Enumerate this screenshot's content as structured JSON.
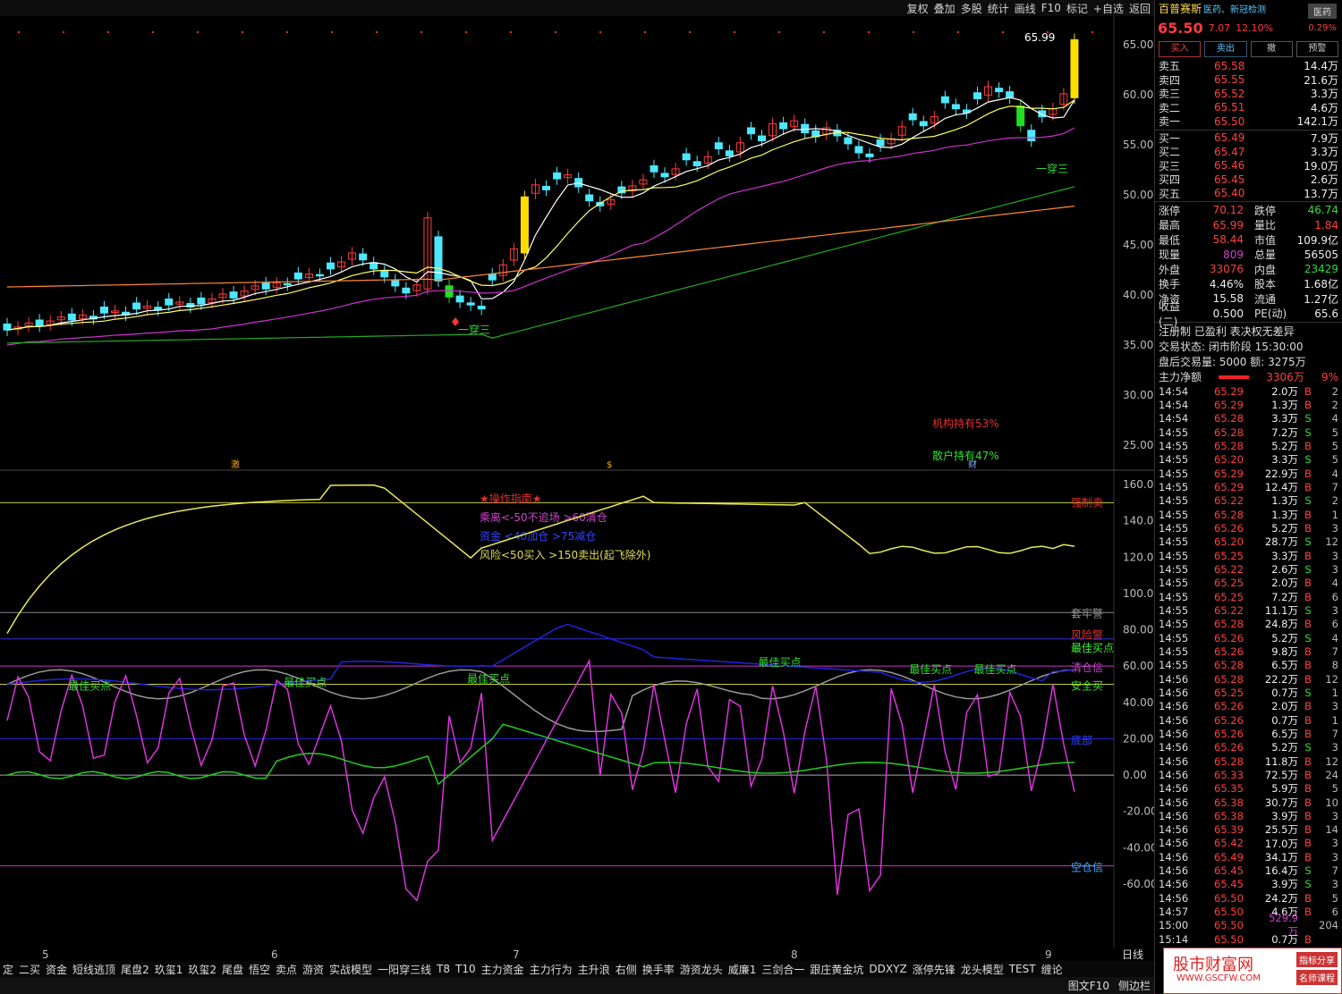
{
  "toolbar": [
    "复权",
    "叠加",
    "多股",
    "统计",
    "画线",
    "F10",
    "标记",
    "+自选",
    "返回"
  ],
  "stock": {
    "name": "百普赛斯",
    "tags": "医药、新冠检测",
    "badge": "医药",
    "price": "65.50",
    "change": "7.07",
    "pct": "12.10%",
    "pct2": "0.29%"
  },
  "trade_buttons": [
    "买入",
    "卖出",
    "撤",
    "预警"
  ],
  "asks": [
    {
      "label": "卖五",
      "price": "65.58",
      "vol": "14.4万"
    },
    {
      "label": "卖四",
      "price": "65.55",
      "vol": "21.6万"
    },
    {
      "label": "卖三",
      "price": "65.52",
      "vol": "3.3万"
    },
    {
      "label": "卖二",
      "price": "65.51",
      "vol": "4.6万"
    },
    {
      "label": "卖一",
      "price": "65.50",
      "vol": "142.1万"
    }
  ],
  "bids": [
    {
      "label": "买一",
      "price": "65.49",
      "vol": "7.9万"
    },
    {
      "label": "买二",
      "price": "65.47",
      "vol": "3.3万"
    },
    {
      "label": "买三",
      "price": "65.46",
      "vol": "19.0万"
    },
    {
      "label": "买四",
      "price": "65.45",
      "vol": "2.6万"
    },
    {
      "label": "买五",
      "price": "65.40",
      "vol": "13.7万"
    }
  ],
  "stats": [
    {
      "l1": "涨停",
      "v1": "70.12",
      "l2": "跌停",
      "v2": "46.74",
      "c1": "#ff4040",
      "c2": "#33dd33"
    },
    {
      "l1": "最高",
      "v1": "65.99",
      "l2": "量比",
      "v2": "1.84",
      "c1": "#ff4040",
      "c2": "#ff4040"
    },
    {
      "l1": "最低",
      "v1": "58.44",
      "l2": "市值",
      "v2": "109.9亿",
      "c1": "#ff4040",
      "c2": "#eeeeee"
    },
    {
      "l1": "现量",
      "v1": "809",
      "l2": "总量",
      "v2": "56505",
      "c1": "#cc44cc",
      "c2": "#eeeeee"
    },
    {
      "l1": "外盘",
      "v1": "33076",
      "l2": "内盘",
      "v2": "23429",
      "c1": "#ff4040",
      "c2": "#33dd33"
    },
    {
      "l1": "换手",
      "v1": "4.46%",
      "l2": "股本",
      "v2": "1.68亿",
      "c1": "#eeeeee",
      "c2": "#eeeeee"
    },
    {
      "l1": "净资",
      "v1": "15.58",
      "l2": "流通",
      "v2": "1.27亿",
      "c1": "#eeeeee",
      "c2": "#eeeeee"
    },
    {
      "l1": "收益(二)",
      "v1": "0.500",
      "l2": "PE(动)",
      "v2": "65.6",
      "c1": "#eeeeee",
      "c2": "#eeeeee"
    }
  ],
  "info": [
    "注册制 已盈利 表决权无差异",
    "交易状态: 闭市阶段 15:30:00",
    "盘后交易量: 5000 额: 3275万"
  ],
  "main_flow": {
    "label": "主力净额",
    "value": "3306万",
    "pct": "9%"
  },
  "ticks": [
    [
      "14:54",
      "65.29",
      "2.0万",
      "B",
      "2"
    ],
    [
      "14:54",
      "65.29",
      "1.3万",
      "B",
      "2"
    ],
    [
      "14:54",
      "65.28",
      "3.3万",
      "S",
      "4"
    ],
    [
      "14:55",
      "65.28",
      "7.2万",
      "S",
      "5"
    ],
    [
      "14:55",
      "65.28",
      "5.2万",
      "B",
      "5"
    ],
    [
      "14:55",
      "65.20",
      "3.3万",
      "S",
      "5"
    ],
    [
      "14:55",
      "65.29",
      "22.9万",
      "B",
      "4"
    ],
    [
      "14:55",
      "65.29",
      "12.4万",
      "B",
      "7"
    ],
    [
      "14:55",
      "65.22",
      "1.3万",
      "S",
      "2"
    ],
    [
      "14:55",
      "65.28",
      "1.3万",
      "B",
      "1"
    ],
    [
      "14:55",
      "65.26",
      "5.2万",
      "B",
      "3"
    ],
    [
      "14:55",
      "65.20",
      "28.7万",
      "S",
      "12"
    ],
    [
      "14:55",
      "65.25",
      "3.3万",
      "B",
      "3"
    ],
    [
      "14:55",
      "65.22",
      "2.6万",
      "S",
      "3"
    ],
    [
      "14:55",
      "65.25",
      "2.0万",
      "B",
      "4"
    ],
    [
      "14:55",
      "65.25",
      "7.2万",
      "B",
      "6"
    ],
    [
      "14:55",
      "65.22",
      "11.1万",
      "S",
      "3"
    ],
    [
      "14:55",
      "65.28",
      "24.8万",
      "B",
      "6"
    ],
    [
      "14:55",
      "65.26",
      "5.2万",
      "S",
      "4"
    ],
    [
      "14:55",
      "65.26",
      "9.8万",
      "B",
      "7"
    ],
    [
      "14:55",
      "65.28",
      "6.5万",
      "B",
      "8"
    ],
    [
      "14:56",
      "65.28",
      "22.2万",
      "B",
      "12"
    ],
    [
      "14:56",
      "65.25",
      "0.7万",
      "S",
      "1"
    ],
    [
      "14:56",
      "65.26",
      "2.0万",
      "B",
      "3"
    ],
    [
      "14:56",
      "65.26",
      "0.7万",
      "B",
      "1"
    ],
    [
      "14:56",
      "65.26",
      "6.5万",
      "B",
      "7"
    ],
    [
      "14:56",
      "65.26",
      "5.2万",
      "S",
      "3"
    ],
    [
      "14:56",
      "65.28",
      "11.8万",
      "B",
      "12"
    ],
    [
      "14:56",
      "65.33",
      "72.5万",
      "B",
      "24"
    ],
    [
      "14:56",
      "65.35",
      "5.9万",
      "B",
      "5"
    ],
    [
      "14:56",
      "65.38",
      "30.7万",
      "B",
      "10"
    ],
    [
      "14:56",
      "65.38",
      "3.9万",
      "B",
      "3"
    ],
    [
      "14:56",
      "65.39",
      "25.5万",
      "B",
      "14"
    ],
    [
      "14:56",
      "65.42",
      "17.0万",
      "B",
      "3"
    ],
    [
      "14:56",
      "65.49",
      "34.1万",
      "B",
      "3"
    ],
    [
      "14:56",
      "65.45",
      "16.4万",
      "S",
      "7"
    ],
    [
      "14:56",
      "65.45",
      "3.9万",
      "S",
      "3"
    ],
    [
      "14:56",
      "65.50",
      "24.2万",
      "B",
      "5"
    ],
    [
      "14:57",
      "65.50",
      "4.6万",
      "B",
      "6"
    ],
    [
      "15:00",
      "65.50",
      "529.9万",
      "",
      "204"
    ],
    [
      "15:14",
      "65.50",
      "0.7万",
      "B",
      ""
    ]
  ],
  "price_axis": [
    "65.00",
    "60.00",
    "55.00",
    "50.00",
    "45.00",
    "40.00",
    "35.00",
    "30.00",
    "25.00"
  ],
  "ind_axis": [
    "160.0",
    "140.0",
    "120.0",
    "100.0",
    "80.00",
    "60.00",
    "40.00",
    "20.00",
    "0.00",
    "-20.00",
    "-40.00",
    "-60.00"
  ],
  "x_labels": [
    "5",
    "6",
    "7",
    "8",
    "9"
  ],
  "period": "日线",
  "annotations": {
    "high": "65.99",
    "pattern1": "一穿三",
    "pattern2": "一穿三",
    "inst": "机构持有53%",
    "retail": "散户持有47%",
    "guide_title": "★操作指南★",
    "guide1": "乘离<-50不追场 >60清仓",
    "guide2": "资金 <40加仓 >75减仓",
    "guide3": "风险<50买入 >150卖出(起飞除外)",
    "r1": "强制卖",
    "r2": "套牢警",
    "r3": "风险警",
    "r4": "最佳买",
    "r5": "清仓信",
    "r6": "安全买",
    "r7": "底部",
    "r8": "空仓信",
    "buy": "最佳买点",
    "mark1": "激",
    "mark2": "$",
    "mark3": "财"
  },
  "bottom_tabs": [
    "定",
    "二买",
    "资金",
    "短线逃顶",
    "尾盘2",
    "玖玺1",
    "玖玺2",
    "尾盘",
    "悟空",
    "卖点",
    "游资",
    "实战模型",
    "一阳穿三线",
    "T8",
    "T10",
    "主力资金",
    "主力行为",
    "主升浪",
    "右侧",
    "换手率",
    "游资龙头",
    "威廉1",
    "三剑合一",
    "跟庄黄金坑",
    "DDXYZ",
    "涨停先锋",
    "龙头模型",
    "TEST",
    "缠论"
  ],
  "status": [
    "图文F10",
    "侧边栏"
  ],
  "watermark": {
    "title": "股市财富网",
    "url": "WWW.GSCFW.COM",
    "t1": "指标分享",
    "t2": "名师课程"
  },
  "colors": {
    "up": "#ff3b3b",
    "down": "#4de8ff",
    "ma5": "#ffffff",
    "ma10": "#ffff66",
    "ma20": "#cc33cc",
    "ma60": "#22aa22",
    "ma120": "#ff8833"
  }
}
